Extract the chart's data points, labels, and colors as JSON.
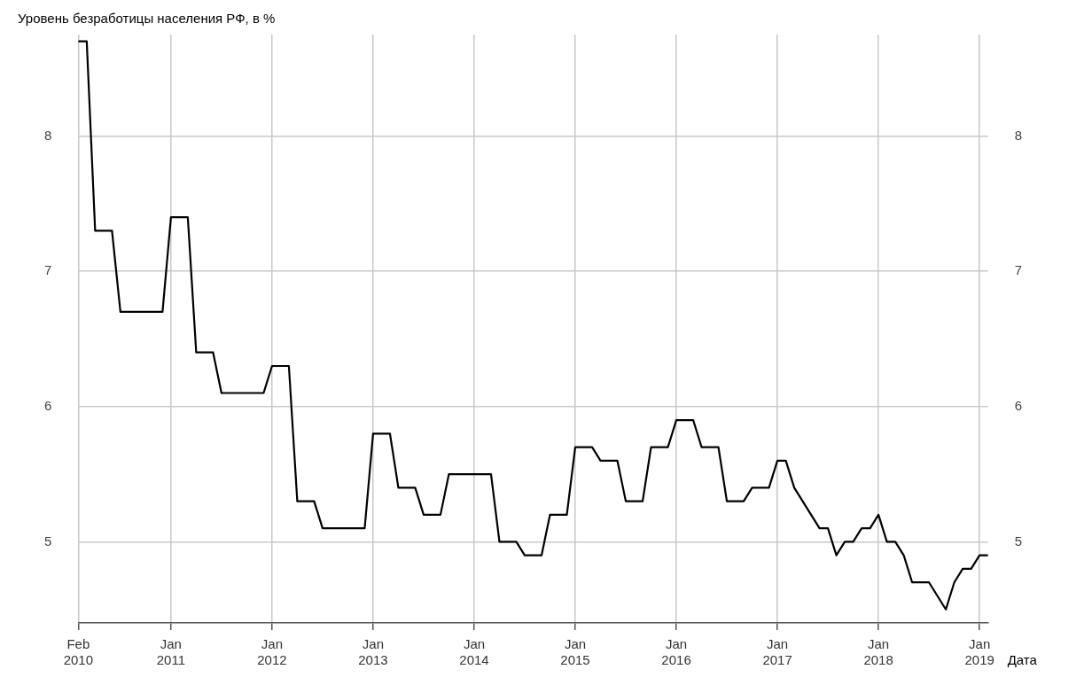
{
  "chart_data": {
    "type": "line",
    "title": "Уровень безработицы населения РФ, в %",
    "xlabel": "Дата",
    "x": [
      "2010-02",
      "2010-03",
      "2010-04",
      "2010-05",
      "2010-06",
      "2010-07",
      "2010-08",
      "2010-09",
      "2010-10",
      "2010-11",
      "2010-12",
      "2011-01",
      "2011-02",
      "2011-03",
      "2011-04",
      "2011-05",
      "2011-06",
      "2011-07",
      "2011-08",
      "2011-09",
      "2011-10",
      "2011-11",
      "2011-12",
      "2012-01",
      "2012-02",
      "2012-03",
      "2012-04",
      "2012-05",
      "2012-06",
      "2012-07",
      "2012-08",
      "2012-09",
      "2012-10",
      "2012-11",
      "2012-12",
      "2013-01",
      "2013-02",
      "2013-03",
      "2013-04",
      "2013-05",
      "2013-06",
      "2013-07",
      "2013-08",
      "2013-09",
      "2013-10",
      "2013-11",
      "2013-12",
      "2014-01",
      "2014-02",
      "2014-03",
      "2014-04",
      "2014-05",
      "2014-06",
      "2014-07",
      "2014-08",
      "2014-09",
      "2014-10",
      "2014-11",
      "2014-12",
      "2015-01",
      "2015-02",
      "2015-03",
      "2015-04",
      "2015-05",
      "2015-06",
      "2015-07",
      "2015-08",
      "2015-09",
      "2015-10",
      "2015-11",
      "2015-12",
      "2016-01",
      "2016-02",
      "2016-03",
      "2016-04",
      "2016-05",
      "2016-06",
      "2016-07",
      "2016-08",
      "2016-09",
      "2016-10",
      "2016-11",
      "2016-12",
      "2017-01",
      "2017-02",
      "2017-03",
      "2017-04",
      "2017-05",
      "2017-06",
      "2017-07",
      "2017-08",
      "2017-09",
      "2017-10",
      "2017-11",
      "2017-12",
      "2018-01",
      "2018-02",
      "2018-03",
      "2018-04",
      "2018-05",
      "2018-06",
      "2018-07",
      "2018-08",
      "2018-09",
      "2018-10",
      "2018-11",
      "2018-12",
      "2019-01",
      "2019-02"
    ],
    "series": [
      {
        "color": "#000000",
        "values": [
          8.7,
          8.7,
          7.3,
          7.3,
          7.3,
          6.7,
          6.7,
          6.7,
          6.7,
          6.7,
          6.7,
          7.4,
          7.4,
          7.4,
          6.4,
          6.4,
          6.4,
          6.1,
          6.1,
          6.1,
          6.1,
          6.1,
          6.1,
          6.3,
          6.3,
          6.3,
          5.3,
          5.3,
          5.3,
          5.1,
          5.1,
          5.1,
          5.1,
          5.1,
          5.1,
          5.8,
          5.8,
          5.8,
          5.4,
          5.4,
          5.4,
          5.2,
          5.2,
          5.2,
          5.5,
          5.5,
          5.5,
          5.5,
          5.5,
          5.5,
          5.0,
          5.0,
          5.0,
          4.9,
          4.9,
          4.9,
          5.2,
          5.2,
          5.2,
          5.7,
          5.7,
          5.7,
          5.6,
          5.6,
          5.6,
          5.3,
          5.3,
          5.3,
          5.7,
          5.7,
          5.7,
          5.9,
          5.9,
          5.9,
          5.7,
          5.7,
          5.7,
          5.3,
          5.3,
          5.3,
          5.4,
          5.4,
          5.4,
          5.6,
          5.6,
          5.4,
          5.3,
          5.2,
          5.1,
          5.1,
          4.9,
          5.0,
          5.0,
          5.1,
          5.1,
          5.2,
          5.0,
          5.0,
          4.9,
          4.7,
          4.7,
          4.7,
          4.6,
          4.5,
          4.7,
          4.8,
          4.8,
          4.9,
          4.9
        ]
      }
    ],
    "xlim": [
      "2010-02",
      "2019-02"
    ],
    "xticks": [
      {
        "value": "2010-02",
        "label": "Feb 2010"
      },
      {
        "value": "2011-01",
        "label": "Jan 2011"
      },
      {
        "value": "2012-01",
        "label": "Jan 2012"
      },
      {
        "value": "2013-01",
        "label": "Jan 2013"
      },
      {
        "value": "2014-01",
        "label": "Jan 2014"
      },
      {
        "value": "2015-01",
        "label": "Jan 2015"
      },
      {
        "value": "2016-01",
        "label": "Jan 2016"
      },
      {
        "value": "2017-01",
        "label": "Jan 2017"
      },
      {
        "value": "2018-01",
        "label": "Jan 2018"
      },
      {
        "value": "2019-01",
        "label": "Jan 2019"
      }
    ],
    "ylim": [
      4.4,
      8.75
    ],
    "yticks": [
      5,
      6,
      7,
      8
    ],
    "y2lim": [
      4.4,
      8.75
    ],
    "y2ticks": [
      5,
      6,
      7,
      8
    ],
    "grid": true,
    "marker": "none",
    "line_style": "solid",
    "legend": false
  }
}
